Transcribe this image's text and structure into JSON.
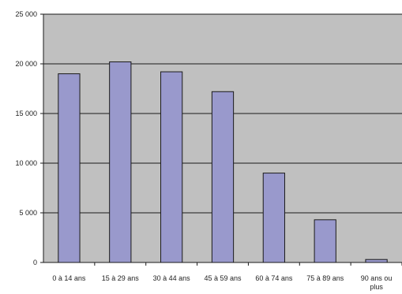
{
  "chart_data": {
    "type": "bar",
    "categories": [
      "0 à 14 ans",
      "15 à 29 ans",
      "30 à 44 ans",
      "45 à 59 ans",
      "60 à 74 ans",
      "75 à 89 ans",
      "90 ans ou plus"
    ],
    "values": [
      19000,
      20200,
      19200,
      17200,
      9000,
      4300,
      300
    ],
    "y_ticks": [
      "0",
      "5 000",
      "10 000",
      "15 000",
      "20 000",
      "25 000"
    ],
    "ylim": [
      0,
      25000
    ],
    "grid": true,
    "legend": "none",
    "colors": {
      "bar_fill": "#9999cc",
      "bar_stroke": "#1a1a1a",
      "plot_background": "#c0c0c0",
      "gridline": "#1a1a1a"
    }
  }
}
